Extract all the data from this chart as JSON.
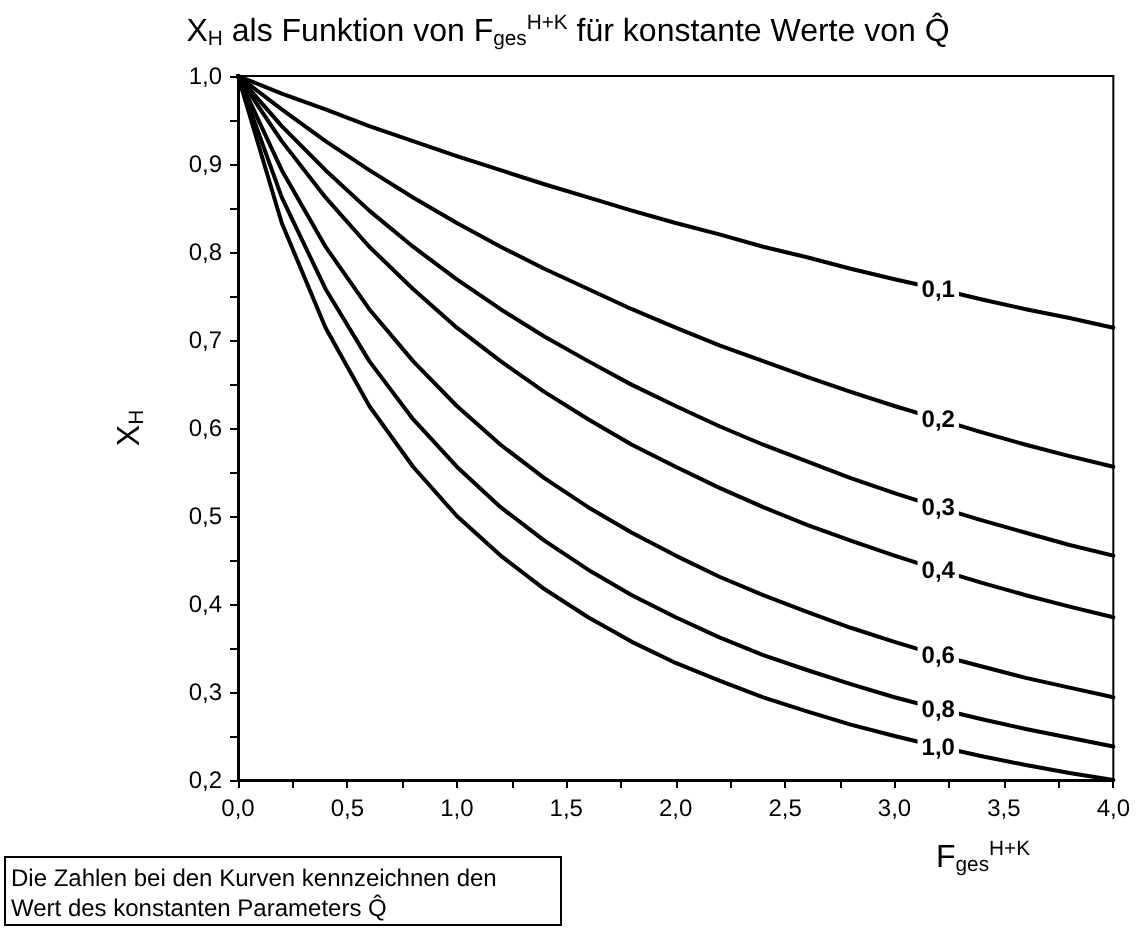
{
  "chart_data": {
    "type": "line",
    "title": "X$_{H}$ als Funktion von F$_{ges}$$^{H+K}$ für konstante Werte von Q̂",
    "xlabel": "F$_{ges}$$^{H+K}$",
    "ylabel": "X$_{H}$",
    "annotations": [
      "Die Zahlen bei den Kurven kennzeichnen den Wert des konstanten Parameters Q̂"
    ],
    "x": [
      0,
      0.2,
      0.4,
      0.6,
      0.8,
      1.0,
      1.2,
      1.4,
      1.6,
      1.8,
      2.0,
      2.2,
      2.4,
      2.6,
      2.8,
      3.0,
      3.2,
      3.4,
      3.6,
      3.8,
      4.0
    ],
    "series": [
      {
        "name": "0,1",
        "color": "#000000",
        "values": [
          1,
          0.98,
          0.962,
          0.943,
          0.926,
          0.909,
          0.893,
          0.877,
          0.862,
          0.847,
          0.833,
          0.82,
          0.806,
          0.794,
          0.781,
          0.769,
          0.758,
          0.746,
          0.735,
          0.725,
          0.714
        ]
      },
      {
        "name": "0,2",
        "color": "#000000",
        "values": [
          1,
          0.962,
          0.926,
          0.893,
          0.862,
          0.833,
          0.806,
          0.781,
          0.758,
          0.735,
          0.714,
          0.694,
          0.676,
          0.658,
          0.641,
          0.625,
          0.61,
          0.595,
          0.581,
          0.568,
          0.556
        ]
      },
      {
        "name": "0,3",
        "color": "#000000",
        "values": [
          1,
          0.943,
          0.893,
          0.847,
          0.806,
          0.769,
          0.735,
          0.704,
          0.676,
          0.649,
          0.625,
          0.602,
          0.581,
          0.562,
          0.543,
          0.526,
          0.51,
          0.495,
          0.481,
          0.467,
          0.455
        ]
      },
      {
        "name": "0,4",
        "color": "#000000",
        "values": [
          1,
          0.926,
          0.862,
          0.806,
          0.758,
          0.714,
          0.676,
          0.641,
          0.61,
          0.581,
          0.556,
          0.532,
          0.51,
          0.49,
          0.472,
          0.455,
          0.439,
          0.424,
          0.41,
          0.397,
          0.385
        ]
      },
      {
        "name": "0,6",
        "color": "#000000",
        "values": [
          1,
          0.893,
          0.806,
          0.735,
          0.676,
          0.625,
          0.581,
          0.543,
          0.51,
          0.481,
          0.455,
          0.431,
          0.41,
          0.391,
          0.373,
          0.357,
          0.342,
          0.329,
          0.316,
          0.305,
          0.294
        ]
      },
      {
        "name": "0,8",
        "color": "#000000",
        "values": [
          1,
          0.862,
          0.758,
          0.676,
          0.61,
          0.556,
          0.51,
          0.472,
          0.439,
          0.41,
          0.385,
          0.362,
          0.342,
          0.325,
          0.309,
          0.294,
          0.281,
          0.269,
          0.258,
          0.248,
          0.238
        ]
      },
      {
        "name": "1,0",
        "color": "#000000",
        "values": [
          1,
          0.833,
          0.714,
          0.625,
          0.556,
          0.5,
          0.455,
          0.417,
          0.385,
          0.357,
          0.333,
          0.313,
          0.294,
          0.278,
          0.263,
          0.25,
          0.238,
          0.227,
          0.217,
          0.208,
          0.2
        ]
      }
    ],
    "xlim": [
      0,
      4
    ],
    "xticks": [
      {
        "value": 0,
        "label": "0,0"
      },
      {
        "value": 0.25,
        "label": null
      },
      {
        "value": 0.5,
        "label": "0,5"
      },
      {
        "value": 0.75,
        "label": null
      },
      {
        "value": 1,
        "label": "1,0"
      },
      {
        "value": 1.25,
        "label": null
      },
      {
        "value": 1.5,
        "label": "1,5"
      },
      {
        "value": 1.75,
        "label": null
      },
      {
        "value": 2,
        "label": "2,0"
      },
      {
        "value": 2.25,
        "label": null
      },
      {
        "value": 2.5,
        "label": "2,5"
      },
      {
        "value": 2.75,
        "label": null
      },
      {
        "value": 3,
        "label": "3,0"
      },
      {
        "value": 3.25,
        "label": null
      },
      {
        "value": 3.5,
        "label": "3,5"
      },
      {
        "value": 3.75,
        "label": null
      },
      {
        "value": 4,
        "label": "4,0"
      }
    ],
    "ylim": [
      0.2,
      1.0
    ],
    "yticks": [
      {
        "value": 0.2,
        "label": "0,2"
      },
      {
        "value": 0.25,
        "label": null
      },
      {
        "value": 0.3,
        "label": "0,3"
      },
      {
        "value": 0.35,
        "label": null
      },
      {
        "value": 0.4,
        "label": "0,4"
      },
      {
        "value": 0.45,
        "label": null
      },
      {
        "value": 0.5,
        "label": "0,5"
      },
      {
        "value": 0.55,
        "label": null
      },
      {
        "value": 0.6,
        "label": "0,6"
      },
      {
        "value": 0.65,
        "label": null
      },
      {
        "value": 0.7,
        "label": "0,7"
      },
      {
        "value": 0.75,
        "label": null
      },
      {
        "value": 0.8,
        "label": "0,8"
      },
      {
        "value": 0.85,
        "label": null
      },
      {
        "value": 0.9,
        "label": "0,9"
      },
      {
        "value": 0.95,
        "label": null
      },
      {
        "value": 1.0,
        "label": "1,0"
      }
    ],
    "grid": false,
    "legend": false
  }
}
